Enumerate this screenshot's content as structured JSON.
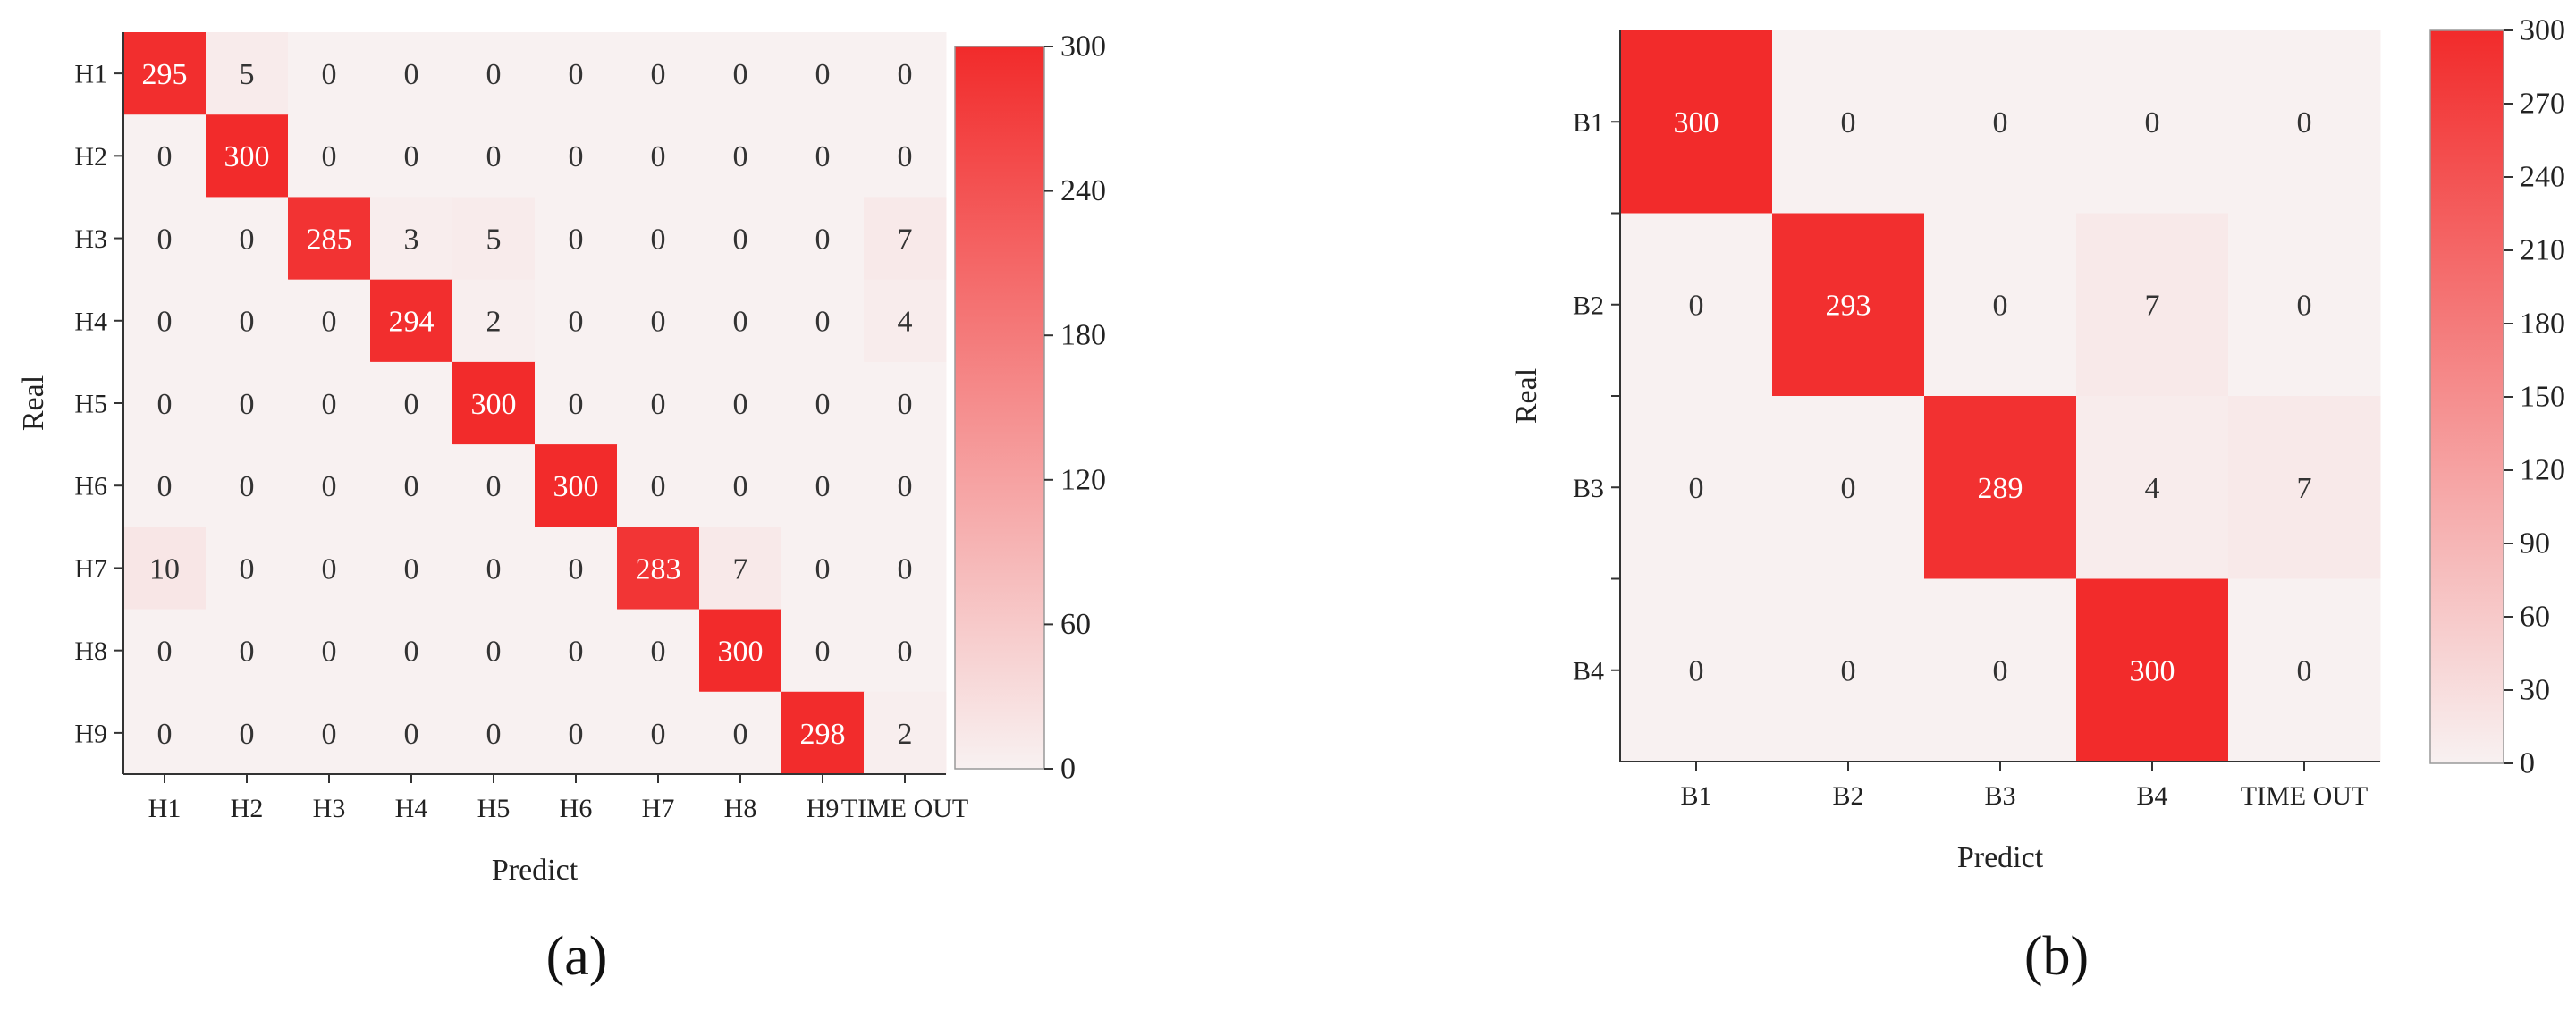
{
  "chart_data": [
    {
      "type": "heatmap",
      "panel_label": "(a)",
      "xlabel": "Predict",
      "ylabel": "Real",
      "x_categories": [
        "H1",
        "H2",
        "H3",
        "H4",
        "H5",
        "H6",
        "H7",
        "H8",
        "H9",
        "TIME OUT"
      ],
      "y_categories": [
        "H1",
        "H2",
        "H3",
        "H4",
        "H5",
        "H6",
        "H7",
        "H8",
        "H9"
      ],
      "values": [
        [
          295,
          5,
          0,
          0,
          0,
          0,
          0,
          0,
          0,
          0
        ],
        [
          0,
          300,
          0,
          0,
          0,
          0,
          0,
          0,
          0,
          0
        ],
        [
          0,
          0,
          285,
          3,
          5,
          0,
          0,
          0,
          0,
          7
        ],
        [
          0,
          0,
          0,
          294,
          2,
          0,
          0,
          0,
          0,
          4
        ],
        [
          0,
          0,
          0,
          0,
          300,
          0,
          0,
          0,
          0,
          0
        ],
        [
          0,
          0,
          0,
          0,
          0,
          300,
          0,
          0,
          0,
          0
        ],
        [
          10,
          0,
          0,
          0,
          0,
          0,
          283,
          7,
          0,
          0
        ],
        [
          0,
          0,
          0,
          0,
          0,
          0,
          0,
          300,
          0,
          0
        ],
        [
          0,
          0,
          0,
          0,
          0,
          0,
          0,
          0,
          298,
          2
        ]
      ],
      "colorbar": {
        "min": 0,
        "max": 300,
        "ticks": [
          0,
          60,
          120,
          180,
          240,
          300
        ]
      },
      "colors": {
        "low": "#f8f1f1",
        "high": "#f22b2b"
      }
    },
    {
      "type": "heatmap",
      "panel_label": "(b)",
      "xlabel": "Predict",
      "ylabel": "Real",
      "x_categories": [
        "B1",
        "B2",
        "B3",
        "B4",
        "TIME OUT"
      ],
      "y_categories": [
        "B1",
        "B2",
        "B3",
        "B4"
      ],
      "values": [
        [
          300,
          0,
          0,
          0,
          0
        ],
        [
          0,
          293,
          0,
          7,
          0
        ],
        [
          0,
          0,
          289,
          4,
          7
        ],
        [
          0,
          0,
          0,
          300,
          0
        ]
      ],
      "colorbar": {
        "min": 0,
        "max": 300,
        "ticks": [
          0,
          30,
          60,
          90,
          120,
          150,
          180,
          210,
          240,
          270,
          300
        ]
      },
      "colors": {
        "low": "#f8f1f1",
        "high": "#f22b2b"
      }
    }
  ]
}
